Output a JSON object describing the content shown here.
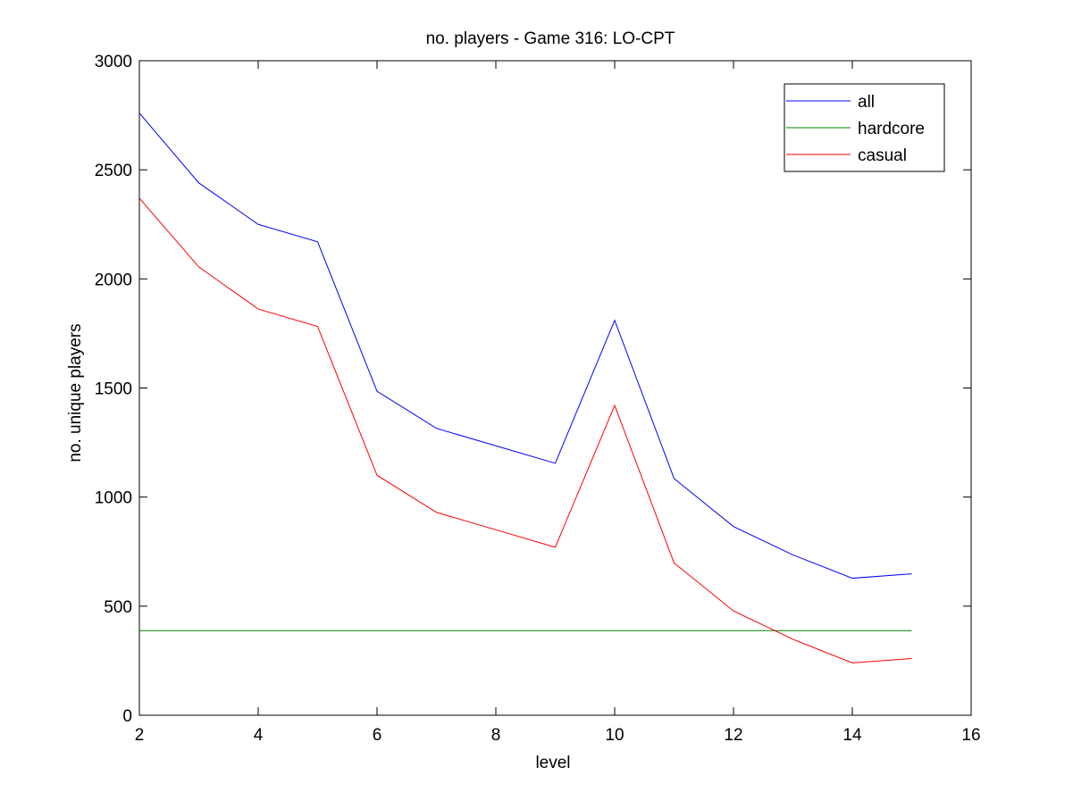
{
  "chart_data": {
    "type": "line",
    "title": "no. players - Game 316: LO-CPT",
    "xlabel": "level",
    "ylabel": "no. unique players",
    "xlim": [
      2,
      16
    ],
    "ylim": [
      0,
      3000
    ],
    "xticks": [
      2,
      4,
      6,
      8,
      10,
      12,
      14,
      16
    ],
    "yticks": [
      0,
      500,
      1000,
      1500,
      2000,
      2500,
      3000
    ],
    "grid": false,
    "legend_position": "top-right",
    "series": [
      {
        "name": "all",
        "color": "#0000ff",
        "x": [
          2,
          3,
          4,
          5,
          6,
          7,
          8,
          9,
          10,
          11,
          12,
          13,
          14,
          15
        ],
        "y": [
          2760,
          2440,
          2250,
          2170,
          1485,
          1315,
          1235,
          1155,
          1810,
          1085,
          865,
          735,
          628,
          648
        ]
      },
      {
        "name": "hardcore",
        "color": "#008000",
        "x": [
          2,
          3,
          4,
          5,
          6,
          7,
          8,
          9,
          10,
          11,
          12,
          13,
          14,
          15
        ],
        "y": [
          388,
          388,
          388,
          388,
          388,
          388,
          388,
          388,
          388,
          388,
          388,
          388,
          388,
          388
        ]
      },
      {
        "name": "casual",
        "color": "#ff0000",
        "x": [
          2,
          3,
          4,
          5,
          6,
          7,
          8,
          9,
          10,
          11,
          12,
          13,
          14,
          15
        ],
        "y": [
          2370,
          2055,
          1862,
          1782,
          1100,
          930,
          850,
          770,
          1420,
          698,
          478,
          348,
          240,
          260
        ]
      }
    ]
  }
}
